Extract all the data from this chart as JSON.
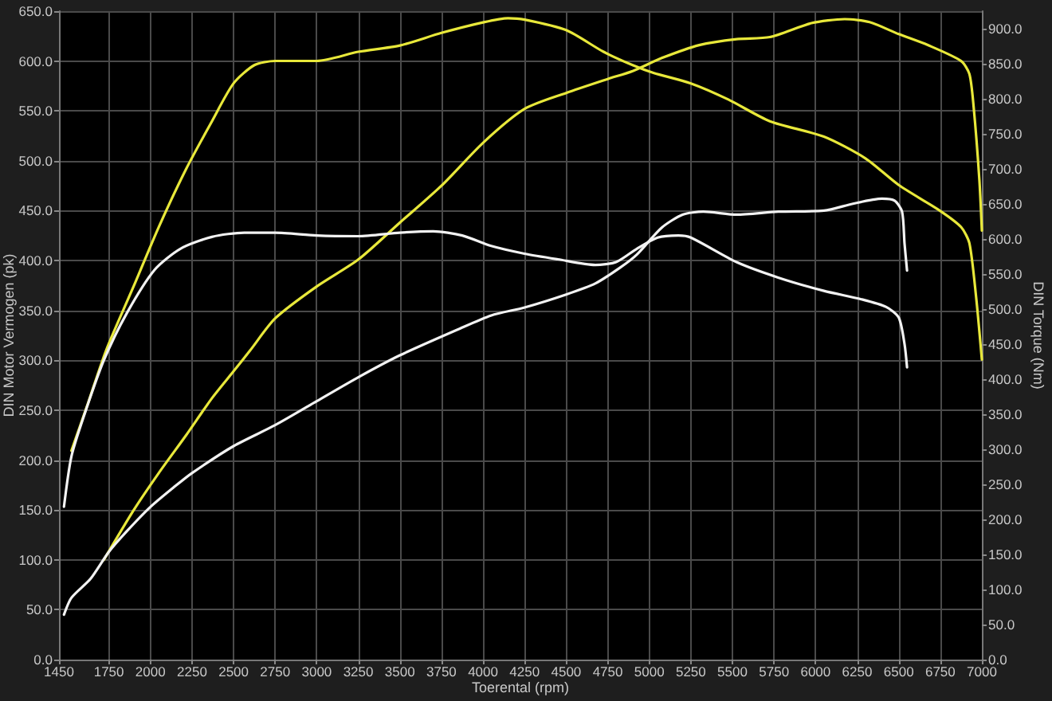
{
  "chart_data": {
    "type": "line",
    "xlabel": "Toerental (rpm)",
    "ylabel": "DIN Motor Vermogen (pk)",
    "y2label": "DIN Torque (Nm)",
    "xlim": [
      1450,
      7000
    ],
    "xticks": [
      1450,
      1750,
      2000,
      2250,
      2500,
      2750,
      3000,
      3250,
      3500,
      3750,
      4000,
      4250,
      4500,
      4750,
      5000,
      5250,
      5500,
      5750,
      6000,
      6250,
      6500,
      6750,
      7000
    ],
    "ylim": [
      0,
      650
    ],
    "yticks": [
      {
        "value": 0,
        "label": "0.0"
      },
      {
        "value": 50,
        "label": "50.0"
      },
      {
        "value": 100,
        "label": "100.0"
      },
      {
        "value": 150,
        "label": "150.0"
      },
      {
        "value": 200,
        "label": "200.0"
      },
      {
        "value": 250,
        "label": "250.0"
      },
      {
        "value": 300,
        "label": "300.0"
      },
      {
        "value": 350,
        "label": "350.0"
      },
      {
        "value": 400,
        "label": "400.0"
      },
      {
        "value": 450,
        "label": "450.0"
      },
      {
        "value": 500,
        "label": "500.0"
      },
      {
        "value": 550,
        "label": "550.0"
      },
      {
        "value": 600,
        "label": "600.0"
      },
      {
        "value": 650,
        "label": "650.0"
      }
    ],
    "y2lim": [
      0,
      925
    ],
    "y2ticks": [
      {
        "value": 0,
        "label": "0.0"
      },
      {
        "value": 50,
        "label": "50.0"
      },
      {
        "value": 100,
        "label": "100.0"
      },
      {
        "value": 150,
        "label": "150.0"
      },
      {
        "value": 200,
        "label": "200.0"
      },
      {
        "value": 250,
        "label": "250.0"
      },
      {
        "value": 300,
        "label": "300.0"
      },
      {
        "value": 350,
        "label": "350.0"
      },
      {
        "value": 400,
        "label": "400.0"
      },
      {
        "value": 450,
        "label": "450.0"
      },
      {
        "value": 500,
        "label": "500.0"
      },
      {
        "value": 550,
        "label": "550.0"
      },
      {
        "value": 600,
        "label": "600.0"
      },
      {
        "value": 650,
        "label": "650.0"
      },
      {
        "value": 700,
        "label": "700.0"
      },
      {
        "value": 750,
        "label": "750.0"
      },
      {
        "value": 800,
        "label": "800.0"
      },
      {
        "value": 850,
        "label": "850.0"
      },
      {
        "value": 900,
        "label": "900.0"
      }
    ],
    "grid": true,
    "marker": "none",
    "line_style": "solid",
    "series": [
      {
        "color": "#e8e83a",
        "axis": "y2",
        "x": [
          1525,
          1625,
          1735,
          1900,
          2050,
          2215,
          2370,
          2500,
          2625,
          2750,
          3000,
          3250,
          3500,
          3750,
          4000,
          4150,
          4250,
          4500,
          4725,
          4900,
          5025,
          5250,
          5475,
          5725,
          6050,
          6300,
          6500,
          6750,
          6875,
          6925,
          6965,
          7000
        ],
        "values": [
          298,
          366,
          442,
          533,
          617,
          700,
          768,
          822,
          848,
          854,
          854,
          867,
          876,
          894,
          909,
          915,
          913,
          898,
          867,
          848,
          837,
          822,
          799,
          768,
          746,
          715,
          677,
          640,
          617,
          594,
          518,
          428
        ]
      },
      {
        "color": "#e8e83a",
        "axis": "y",
        "x": [
          1720,
          1900,
          2050,
          2215,
          2370,
          2500,
          2600,
          2750,
          3000,
          3250,
          3500,
          3750,
          4000,
          4250,
          4500,
          4750,
          4900,
          5075,
          5300,
          5525,
          5725,
          5975,
          6175,
          6325,
          6500,
          6675,
          6875,
          6925,
          6950,
          6985,
          7000
        ],
        "values": [
          100,
          150,
          187,
          225,
          262,
          289,
          310,
          342,
          374,
          401,
          438,
          475,
          518,
          552,
          568,
          582,
          590,
          603,
          616,
          622,
          624,
          638,
          642,
          639,
          627,
          616,
          600,
          587,
          555,
          481,
          430
        ]
      },
      {
        "color": "#f2f2f2",
        "axis": "y2",
        "x": [
          1480,
          1525,
          1605,
          1720,
          1860,
          2025,
          2180,
          2370,
          2565,
          2750,
          3000,
          3250,
          3500,
          3700,
          3875,
          4050,
          4250,
          4450,
          4675,
          4800,
          4925,
          5050,
          5175,
          5250,
          5525,
          5775,
          6050,
          6275,
          6425,
          6500,
          6535,
          6550
        ],
        "values": [
          218,
          290,
          351,
          427,
          495,
          556,
          586,
          603,
          609,
          609,
          605,
          604,
          609,
          611,
          605,
          590,
          579,
          571,
          563,
          567,
          586,
          602,
          605,
          602,
          567,
          545,
          526,
          514,
          503,
          488,
          450,
          417
        ]
      },
      {
        "color": "#f2f2f2",
        "axis": "y",
        "x": [
          1480,
          1525,
          1640,
          1750,
          1860,
          2000,
          2150,
          2250,
          2500,
          2750,
          3000,
          3250,
          3500,
          3850,
          4050,
          4250,
          4500,
          4675,
          4825,
          4925,
          5075,
          5200,
          5325,
          5525,
          5775,
          6050,
          6225,
          6400,
          6475,
          6520,
          6535,
          6550
        ],
        "values": [
          45,
          62,
          81,
          108,
          129,
          153,
          174,
          187,
          214,
          235,
          259,
          283,
          305,
          331,
          345,
          353,
          366,
          377,
          393,
          406,
          433,
          446,
          449,
          446,
          449,
          450,
          457,
          462,
          460,
          449,
          417,
          390
        ]
      }
    ]
  }
}
